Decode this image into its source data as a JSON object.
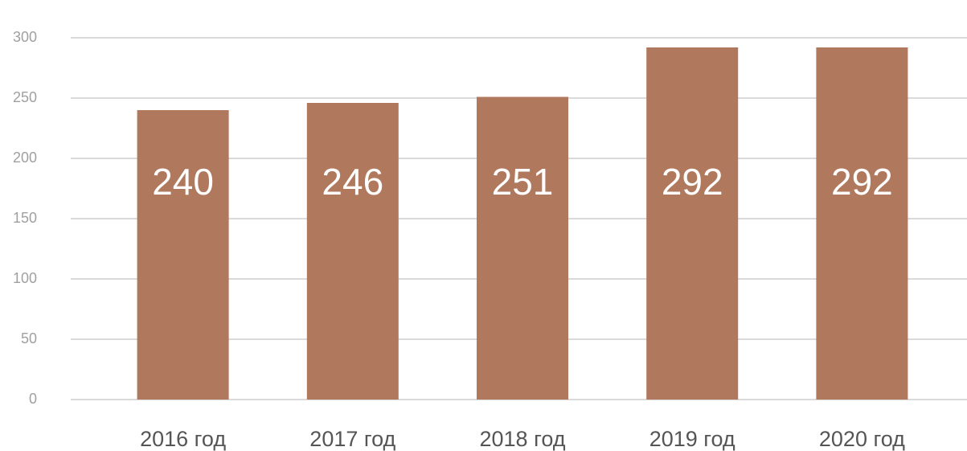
{
  "chart_data": {
    "type": "bar",
    "categories": [
      "2016 год",
      "2017 год",
      "2018 год",
      "2019 год",
      "2020 год"
    ],
    "values": [
      240,
      246,
      251,
      292,
      292
    ],
    "color": "#b0785c",
    "ylim": [
      0,
      300
    ],
    "yticks": [
      0,
      50,
      100,
      150,
      200,
      250,
      300
    ],
    "grid": true
  }
}
